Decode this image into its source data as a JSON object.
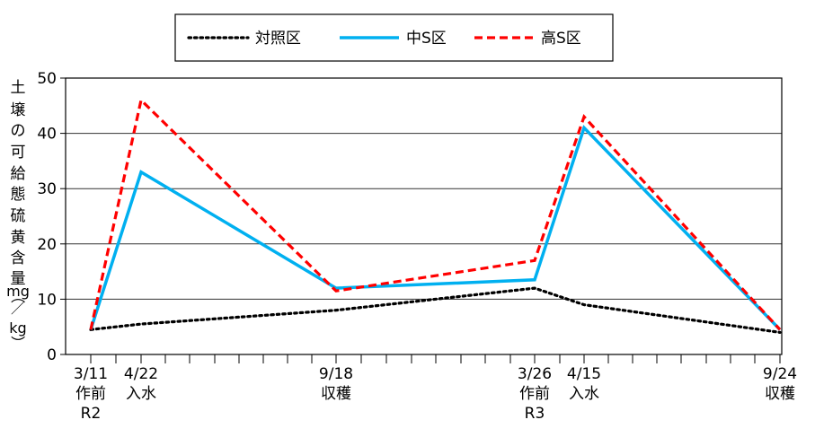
{
  "chart_data": {
    "type": "line",
    "ylabel_chars": [
      "土",
      "壌",
      "の",
      "可",
      "給",
      "態",
      "硫",
      "黄",
      "含",
      "量",
      "（",
      "mg",
      "／",
      "kg",
      "）"
    ],
    "ylim": [
      0,
      50
    ],
    "yticks": [
      0,
      10,
      20,
      30,
      40,
      50
    ],
    "grid": true,
    "legend_position": "top",
    "x_days": [
      0,
      42,
      191,
      380,
      400,
      562
    ],
    "x_label_groups": [
      {
        "lines": [
          "3/11",
          "作前",
          "R2"
        ]
      },
      {
        "lines": [
          "4/22",
          "入水"
        ]
      },
      {
        "lines": [
          "9/18",
          "収穫"
        ]
      },
      {
        "lines": [
          "3/26",
          "作前",
          "R3"
        ]
      },
      {
        "lines": [
          "4/15",
          "入水"
        ]
      },
      {
        "lines": [
          "9/24",
          "収穫"
        ]
      }
    ],
    "series": [
      {
        "name": "対照区",
        "style": "dotted",
        "color": "#000000",
        "values": [
          4.5,
          5.5,
          8.0,
          12.0,
          9.0,
          4.0
        ]
      },
      {
        "name": "中S区",
        "style": "solid",
        "color": "#00b0f0",
        "values": [
          4.5,
          33.0,
          12.0,
          13.5,
          41.0,
          4.5
        ]
      },
      {
        "name": "高S区",
        "style": "dashed",
        "color": "#ff0000",
        "values": [
          4.5,
          46.0,
          11.5,
          17.0,
          43.0,
          4.5
        ]
      }
    ]
  }
}
